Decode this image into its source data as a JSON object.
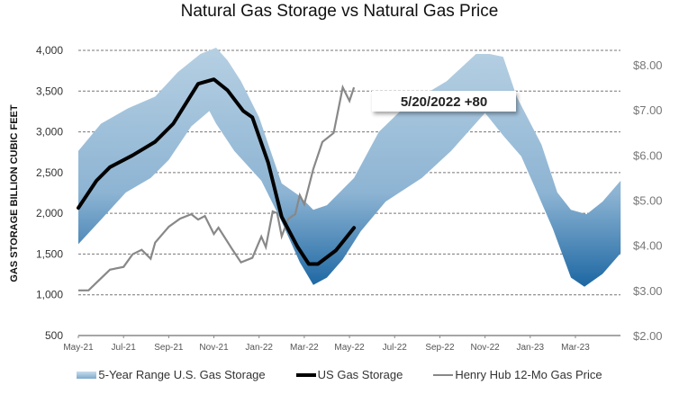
{
  "chart_data": {
    "type": "line",
    "title": "Natural Gas Storage vs Natural Gas Price",
    "ylabel": "GAS STORAGE BILLION CUBIC FEET",
    "y2label": "",
    "ylim": [
      500,
      4000
    ],
    "y2lim": [
      2,
      8
    ],
    "yticks": [
      "4,000",
      "3,500",
      "3,000",
      "2,500",
      "2,000",
      "1,500",
      "1,000",
      "500"
    ],
    "ytick_values": [
      4000,
      3500,
      3000,
      2500,
      2000,
      1500,
      1000,
      500
    ],
    "y2ticks": [
      "$8.00",
      "$7.00",
      "$6.00",
      "$5.00",
      "$4.00",
      "$3.00",
      "$2.00"
    ],
    "y2tick_values": [
      8,
      7,
      6,
      5,
      4,
      3,
      2
    ],
    "xticks": [
      "May-21",
      "Jul-21",
      "Sep-21",
      "Nov-21",
      "Jan-22",
      "Mar-22",
      "May-22",
      "Jul-22",
      "Sep-22",
      "Nov-22",
      "Jan-23",
      "Mar-23"
    ],
    "x_unit": "months since May-21",
    "xlim": [
      0,
      24
    ],
    "grid": true,
    "legend_position": "bottom",
    "annotation": "5/20/2022  +80",
    "series": [
      {
        "name": "5-Year Range U.S. Gas Storage",
        "type": "band",
        "color": "#6d9ec6",
        "upper": [
          [
            0,
            2767
          ],
          [
            1,
            3100
          ],
          [
            2.2,
            3289
          ],
          [
            3.4,
            3433
          ],
          [
            4.4,
            3733
          ],
          [
            5.4,
            3956
          ],
          [
            6.1,
            4033
          ],
          [
            6.6,
            3878
          ],
          [
            7.2,
            3622
          ],
          [
            8,
            3178
          ],
          [
            9,
            2367
          ],
          [
            9.8,
            2211
          ],
          [
            10.4,
            2044
          ],
          [
            11,
            2100
          ],
          [
            12.2,
            2433
          ],
          [
            13.3,
            3000
          ],
          [
            14.5,
            3322
          ],
          [
            16.3,
            3622
          ],
          [
            17.6,
            3956
          ],
          [
            18.2,
            3956
          ],
          [
            18.8,
            3922
          ],
          [
            19.4,
            3433
          ],
          [
            20.5,
            2844
          ],
          [
            21.2,
            2256
          ],
          [
            21.8,
            2044
          ],
          [
            22.5,
            1989
          ],
          [
            23.2,
            2144
          ],
          [
            24,
            2400
          ]
        ],
        "lower": [
          [
            0,
            1622
          ],
          [
            1,
            1922
          ],
          [
            2.1,
            2256
          ],
          [
            3.2,
            2433
          ],
          [
            4,
            2656
          ],
          [
            5,
            3067
          ],
          [
            5.8,
            3256
          ],
          [
            6.1,
            3100
          ],
          [
            6.9,
            2767
          ],
          [
            8.1,
            2400
          ],
          [
            8.9,
            1956
          ],
          [
            9.8,
            1400
          ],
          [
            10.4,
            1122
          ],
          [
            11,
            1211
          ],
          [
            11.7,
            1433
          ],
          [
            12.5,
            1780
          ],
          [
            13.6,
            2144
          ],
          [
            15.2,
            2433
          ],
          [
            16.5,
            2767
          ],
          [
            18,
            3233
          ],
          [
            18.8,
            2956
          ],
          [
            19.6,
            2700
          ],
          [
            20.2,
            2322
          ],
          [
            21,
            1811
          ],
          [
            21.8,
            1211
          ],
          [
            22.4,
            1100
          ],
          [
            23.2,
            1256
          ],
          [
            24,
            1511
          ]
        ]
      },
      {
        "name": "US Gas Storage",
        "axis": "left",
        "color": "#000000",
        "points": [
          [
            0,
            2067
          ],
          [
            0.8,
            2400
          ],
          [
            1.4,
            2567
          ],
          [
            2.4,
            2711
          ],
          [
            3.4,
            2878
          ],
          [
            4.2,
            3100
          ],
          [
            5.3,
            3589
          ],
          [
            6,
            3644
          ],
          [
            6.6,
            3511
          ],
          [
            7.3,
            3256
          ],
          [
            7.7,
            3178
          ],
          [
            8.4,
            2622
          ],
          [
            9,
            1956
          ],
          [
            9.7,
            1589
          ],
          [
            10.2,
            1378
          ],
          [
            10.6,
            1378
          ],
          [
            11.4,
            1544
          ],
          [
            12.2,
            1822
          ]
        ]
      },
      {
        "name": "Henry Hub 12-Mo Gas Price",
        "axis": "right",
        "color": "#888888",
        "points": [
          [
            0,
            3.0
          ],
          [
            0.45,
            3.0
          ],
          [
            0.9,
            3.22
          ],
          [
            1.4,
            3.46
          ],
          [
            2,
            3.52
          ],
          [
            2.4,
            3.8
          ],
          [
            2.8,
            3.9
          ],
          [
            3.2,
            3.7
          ],
          [
            3.4,
            4.06
          ],
          [
            4,
            4.41
          ],
          [
            4.5,
            4.59
          ],
          [
            5,
            4.69
          ],
          [
            5.3,
            4.57
          ],
          [
            5.6,
            4.65
          ],
          [
            6,
            4.25
          ],
          [
            6.2,
            4.39
          ],
          [
            6.8,
            3.92
          ],
          [
            7.2,
            3.62
          ],
          [
            7.7,
            3.72
          ],
          [
            8.1,
            4.19
          ],
          [
            8.3,
            3.96
          ],
          [
            8.6,
            4.75
          ],
          [
            8.8,
            4.71
          ],
          [
            9,
            4.2
          ],
          [
            9.3,
            4.59
          ],
          [
            9.6,
            4.69
          ],
          [
            9.8,
            5.11
          ],
          [
            10,
            4.91
          ],
          [
            10.4,
            5.69
          ],
          [
            10.8,
            6.29
          ],
          [
            11.3,
            6.49
          ],
          [
            11.7,
            7.5
          ],
          [
            12,
            7.2
          ],
          [
            12.2,
            7.5
          ]
        ]
      }
    ]
  }
}
